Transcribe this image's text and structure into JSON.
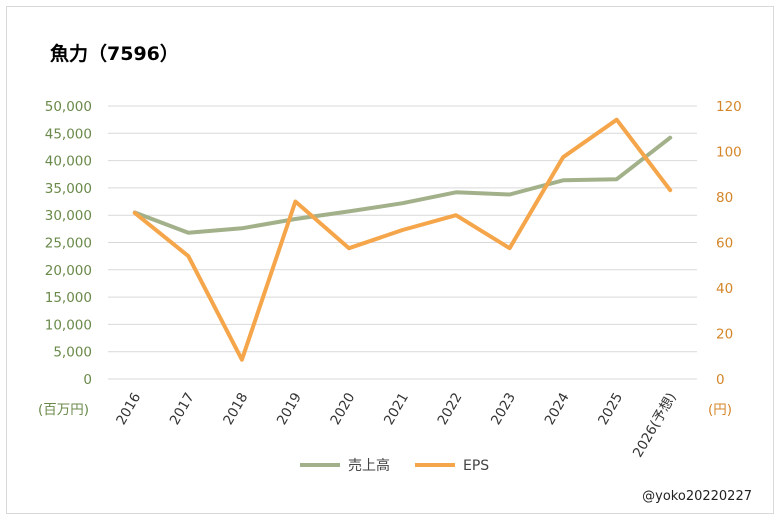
{
  "chart_data": {
    "type": "line",
    "title": "魚力（7596）",
    "categories": [
      "2016",
      "2017",
      "2018",
      "2019",
      "2020",
      "2021",
      "2022",
      "2023",
      "2024",
      "2025",
      "2026(予想)"
    ],
    "y_left": {
      "unit_label": "(百万円)",
      "ylim": [
        0,
        50000
      ],
      "ticks": [
        "0",
        "5,000",
        "10,000",
        "15,000",
        "20,000",
        "25,000",
        "30,000",
        "35,000",
        "40,000",
        "45,000",
        "50,000"
      ],
      "color": "#6a8a4a"
    },
    "y_right": {
      "unit_label": "(円)",
      "ylim": [
        0,
        120
      ],
      "ticks": [
        "0",
        "20",
        "40",
        "60",
        "80",
        "100",
        "120"
      ],
      "color": "#d4862a"
    },
    "series": [
      {
        "name": "売上高",
        "axis": "left",
        "color": "#a3b18a",
        "values": [
          30500,
          26800,
          27600,
          29300,
          30700,
          32200,
          34200,
          33800,
          36400,
          36600,
          44200
        ]
      },
      {
        "name": "EPS",
        "axis": "right",
        "color": "#f5a54a",
        "values": [
          73,
          54,
          8.5,
          78,
          57.5,
          65.5,
          72,
          57.5,
          97.5,
          114,
          83
        ]
      }
    ],
    "grid": true,
    "legend_position": "bottom"
  },
  "credit": "@yoko20220227"
}
